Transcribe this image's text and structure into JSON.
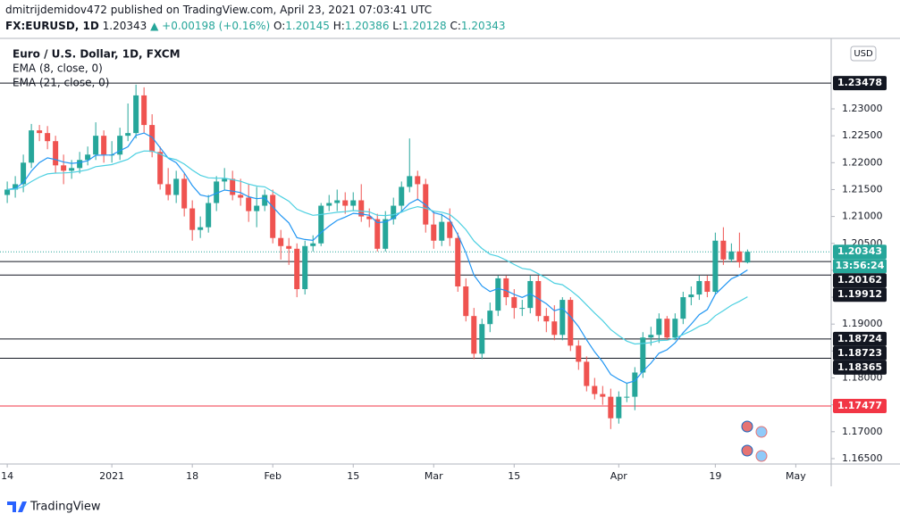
{
  "header": {
    "line1": "dmitrijdemidov472 published on TradingView.com, April 23, 2021 07:03:41 UTC",
    "symbol": "FX:EURUSD, 1D",
    "price": "1.20343",
    "change": "▲ +0.00198 (+0.16%)",
    "o_label": "O:",
    "o": "1.20145",
    "h_label": "H:",
    "h": "1.20386",
    "l_label": "L:",
    "l": "1.20128",
    "c_label": "C:",
    "c": "1.20343"
  },
  "footer": "TradingView",
  "chart_data": {
    "type": "candlestick",
    "legend": [
      "Euro / U.S. Dollar, 1D, FXCM",
      "EMA (8, close, 0)",
      "EMA (21, close, 0)"
    ],
    "currency": "USD",
    "countdown": "13:56:24",
    "up_color": "#26a69a",
    "down_color": "#ef5350",
    "ema": [
      {
        "period": 8,
        "color": "#2196f3"
      },
      {
        "period": 21,
        "color": "#4dd0e1"
      }
    ],
    "xlim": [
      -0.9,
      102.4
    ],
    "xticks": [
      {
        "value": 0,
        "label": "14"
      },
      {
        "value": 13,
        "label": "2021"
      },
      {
        "value": 23,
        "label": "18"
      },
      {
        "value": 33,
        "label": "Feb"
      },
      {
        "value": 43,
        "label": "15"
      },
      {
        "value": 53,
        "label": "Mar"
      },
      {
        "value": 63,
        "label": "15"
      },
      {
        "value": 76,
        "label": "Apr"
      },
      {
        "value": 88,
        "label": "19"
      },
      {
        "value": 98,
        "label": "May"
      }
    ],
    "ylim": [
      1.164,
      1.2431
    ],
    "yticks": [
      {
        "value": 1.165,
        "label": "1.16500"
      },
      {
        "value": 1.17,
        "label": "1.17000"
      },
      {
        "value": 1.175,
        "label": "1.17500"
      },
      {
        "value": 1.18,
        "label": "1.18000"
      },
      {
        "value": 1.185,
        "label": "1.18500"
      },
      {
        "value": 1.19,
        "label": "1.19000"
      },
      {
        "value": 1.195,
        "label": "1.19500"
      },
      {
        "value": 1.2,
        "label": "1.20000"
      },
      {
        "value": 1.205,
        "label": "1.20500"
      },
      {
        "value": 1.21,
        "label": "1.21000"
      },
      {
        "value": 1.215,
        "label": "1.21500"
      },
      {
        "value": 1.22,
        "label": "1.22000"
      },
      {
        "value": 1.225,
        "label": "1.22500"
      },
      {
        "value": 1.23,
        "label": "1.23000"
      }
    ],
    "levels": [
      {
        "value": 1.23478,
        "color": "#131722",
        "line": true
      },
      {
        "value": 1.20343,
        "color": "#26a69a",
        "line": false,
        "current": true
      },
      {
        "value": 1.20162,
        "color": "#131722",
        "line": true
      },
      {
        "value": 1.19912,
        "color": "#131722",
        "line": true
      },
      {
        "value": 1.18724,
        "color": "#131722",
        "line": true
      },
      {
        "value": 1.18723,
        "color": "#131722",
        "line": false
      },
      {
        "value": 1.18365,
        "color": "#131722",
        "line": true
      },
      {
        "value": 1.17477,
        "color": "#f23645",
        "line": true
      }
    ],
    "open": [
      1.214,
      1.215,
      1.216,
      1.22,
      1.226,
      1.2255,
      1.224,
      1.2195,
      1.2185,
      1.219,
      1.2205,
      1.2215,
      1.225,
      1.2215,
      1.2215,
      1.225,
      1.2255,
      1.2325,
      1.227,
      1.222,
      1.216,
      1.214,
      1.217,
      1.2115,
      1.2075,
      1.208,
      1.2125,
      1.2165,
      1.217,
      1.214,
      1.2135,
      1.211,
      1.212,
      1.214,
      1.206,
      1.2045,
      1.204,
      1.1965,
      1.2045,
      1.205,
      1.212,
      1.2125,
      1.213,
      1.212,
      1.213,
      1.21,
      1.2095,
      1.204,
      1.2095,
      1.212,
      1.2155,
      1.2175,
      1.216,
      1.2085,
      1.2055,
      1.209,
      1.206,
      1.197,
      1.1915,
      1.1845,
      1.19,
      1.1925,
      1.1985,
      1.195,
      1.193,
      1.193,
      1.198,
      1.1915,
      1.1905,
      1.188,
      1.1945,
      1.186,
      1.183,
      1.1785,
      1.177,
      1.1765,
      1.1725,
      1.1765,
      1.1765,
      1.181,
      1.1875,
      1.188,
      1.191,
      1.1875,
      1.191,
      1.195,
      1.1955,
      1.198,
      1.196,
      1.2055,
      1.202,
      1.2035,
      1.20145
    ],
    "high": [
      1.2165,
      1.2175,
      1.2215,
      1.2272,
      1.227,
      1.2268,
      1.225,
      1.2215,
      1.2205,
      1.222,
      1.223,
      1.2275,
      1.226,
      1.224,
      1.2265,
      1.231,
      1.2345,
      1.234,
      1.229,
      1.223,
      1.219,
      1.2185,
      1.218,
      1.213,
      1.21,
      1.214,
      1.2175,
      1.219,
      1.2185,
      1.217,
      1.216,
      1.2155,
      1.215,
      1.215,
      1.2075,
      1.206,
      1.205,
      1.2055,
      1.2065,
      1.2125,
      1.214,
      1.215,
      1.2145,
      1.2145,
      1.216,
      1.2115,
      1.2105,
      1.211,
      1.2135,
      1.2165,
      1.2245,
      1.2185,
      1.217,
      1.211,
      1.2105,
      1.2115,
      1.207,
      1.1985,
      1.193,
      1.191,
      1.194,
      1.199,
      1.199,
      1.1965,
      1.1945,
      1.199,
      1.199,
      1.193,
      1.1935,
      1.195,
      1.195,
      1.187,
      1.184,
      1.18,
      1.1785,
      1.178,
      1.1775,
      1.179,
      1.182,
      1.1885,
      1.1895,
      1.192,
      1.1915,
      1.192,
      1.196,
      1.197,
      1.199,
      1.199,
      1.207,
      1.208,
      1.205,
      1.207,
      1.20386
    ],
    "low": [
      1.2125,
      1.2135,
      1.2145,
      1.219,
      1.224,
      1.2225,
      1.218,
      1.216,
      1.217,
      1.218,
      1.2195,
      1.2205,
      1.22,
      1.22,
      1.2205,
      1.224,
      1.2245,
      1.2255,
      1.221,
      1.215,
      1.213,
      1.2125,
      1.21,
      1.2055,
      1.206,
      1.207,
      1.211,
      1.215,
      1.213,
      1.212,
      1.209,
      1.208,
      1.211,
      1.205,
      1.202,
      1.201,
      1.195,
      1.1955,
      1.2035,
      1.2045,
      1.211,
      1.211,
      1.2105,
      1.211,
      1.209,
      1.208,
      1.2035,
      1.2035,
      1.2085,
      1.211,
      1.2145,
      1.213,
      1.207,
      1.204,
      1.2045,
      1.2045,
      1.196,
      1.1905,
      1.1835,
      1.1835,
      1.1885,
      1.1915,
      1.1935,
      1.191,
      1.1915,
      1.192,
      1.1905,
      1.1885,
      1.187,
      1.187,
      1.185,
      1.1815,
      1.1775,
      1.176,
      1.175,
      1.1705,
      1.1715,
      1.1755,
      1.174,
      1.18,
      1.186,
      1.1865,
      1.187,
      1.187,
      1.19,
      1.1935,
      1.1945,
      1.195,
      1.1955,
      1.201,
      1.2015,
      1.2005,
      1.20128
    ],
    "close": [
      1.215,
      1.216,
      1.22,
      1.226,
      1.2255,
      1.224,
      1.2195,
      1.2185,
      1.219,
      1.2205,
      1.2215,
      1.225,
      1.2215,
      1.2215,
      1.225,
      1.2255,
      1.2325,
      1.227,
      1.222,
      1.216,
      1.214,
      1.217,
      1.2115,
      1.2075,
      1.208,
      1.2125,
      1.2165,
      1.217,
      1.214,
      1.2135,
      1.211,
      1.212,
      1.214,
      1.206,
      1.2045,
      1.204,
      1.1965,
      1.2045,
      1.205,
      1.212,
      1.2125,
      1.213,
      1.212,
      1.213,
      1.21,
      1.2095,
      1.204,
      1.2095,
      1.212,
      1.2155,
      1.2175,
      1.216,
      1.2085,
      1.2055,
      1.209,
      1.206,
      1.197,
      1.1915,
      1.1845,
      1.19,
      1.1925,
      1.1985,
      1.195,
      1.193,
      1.193,
      1.198,
      1.1915,
      1.1905,
      1.188,
      1.1945,
      1.186,
      1.183,
      1.1785,
      1.177,
      1.1765,
      1.1725,
      1.1765,
      1.1765,
      1.181,
      1.1875,
      1.188,
      1.191,
      1.1875,
      1.191,
      1.195,
      1.1955,
      1.198,
      1.196,
      1.2055,
      1.202,
      1.2035,
      1.2015,
      1.20343
    ]
  }
}
